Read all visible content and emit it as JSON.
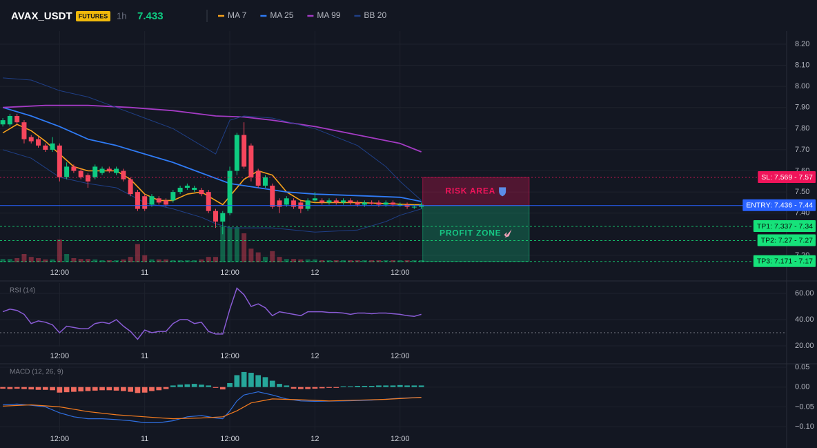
{
  "header": {
    "symbol": "AVAX_USDT",
    "badge": "FUTURES",
    "interval": "1h",
    "price": 7.433
  },
  "chart_data": [
    {
      "type": "candlestick",
      "x": [
        0,
        1,
        2,
        3,
        4,
        5,
        6,
        7,
        8,
        9,
        10,
        11,
        12,
        13,
        14,
        15,
        16,
        17,
        18,
        19,
        20,
        21,
        22,
        23,
        24,
        25,
        26,
        27,
        28,
        29,
        30,
        31,
        32,
        33,
        34,
        35,
        36,
        37,
        38,
        39,
        40,
        41,
        42,
        43,
        44,
        45,
        46,
        47,
        48,
        49,
        50,
        51,
        52,
        53,
        54,
        55,
        56,
        57,
        58,
        59
      ],
      "open": [
        7.82,
        7.82,
        7.86,
        7.83,
        7.76,
        7.75,
        7.72,
        7.7,
        7.72,
        7.57,
        7.62,
        7.6,
        7.58,
        7.57,
        7.59,
        7.61,
        7.59,
        7.6,
        7.56,
        7.5,
        7.48,
        7.44,
        7.47,
        7.46,
        7.46,
        7.5,
        7.52,
        7.51,
        7.51,
        7.5,
        7.41,
        7.36,
        7.4,
        7.6,
        7.77,
        7.72,
        7.6,
        7.53,
        7.53,
        7.46,
        7.44,
        7.46,
        7.45,
        7.42,
        7.46,
        7.46,
        7.45,
        7.46,
        7.45,
        7.46,
        7.45,
        7.44,
        7.45,
        7.45,
        7.44,
        7.45,
        7.44,
        7.44,
        7.43,
        7.43
      ],
      "high": [
        7.85,
        7.87,
        7.87,
        7.84,
        7.77,
        7.76,
        7.73,
        7.76,
        7.73,
        7.64,
        7.63,
        7.61,
        7.59,
        7.63,
        7.62,
        7.62,
        7.62,
        7.61,
        7.57,
        7.51,
        7.49,
        7.49,
        7.48,
        7.47,
        7.51,
        7.53,
        7.54,
        7.53,
        7.52,
        7.51,
        7.42,
        7.41,
        7.62,
        7.78,
        7.83,
        7.73,
        7.61,
        7.58,
        7.54,
        7.47,
        7.48,
        7.47,
        7.46,
        7.47,
        7.5,
        7.47,
        7.47,
        7.47,
        7.47,
        7.47,
        7.46,
        7.46,
        7.46,
        7.46,
        7.46,
        7.46,
        7.45,
        7.45,
        7.44,
        7.45
      ],
      "low": [
        7.81,
        7.81,
        7.82,
        7.73,
        7.73,
        7.71,
        7.69,
        7.69,
        7.55,
        7.56,
        7.59,
        7.56,
        7.52,
        7.56,
        7.58,
        7.59,
        7.58,
        7.55,
        7.48,
        7.41,
        7.41,
        7.43,
        7.44,
        7.43,
        7.45,
        7.49,
        7.51,
        7.5,
        7.48,
        7.4,
        7.33,
        7.3,
        7.39,
        7.58,
        7.61,
        7.55,
        7.52,
        7.52,
        7.42,
        7.4,
        7.43,
        7.42,
        7.4,
        7.41,
        7.45,
        7.44,
        7.44,
        7.44,
        7.44,
        7.44,
        7.43,
        7.43,
        7.44,
        7.43,
        7.43,
        7.43,
        7.43,
        7.42,
        7.42,
        7.42
      ],
      "close": [
        7.84,
        7.86,
        7.83,
        7.75,
        7.74,
        7.72,
        7.7,
        7.73,
        7.57,
        7.62,
        7.6,
        7.57,
        7.55,
        7.62,
        7.61,
        7.6,
        7.61,
        7.56,
        7.49,
        7.42,
        7.42,
        7.48,
        7.45,
        7.44,
        7.5,
        7.52,
        7.53,
        7.52,
        7.49,
        7.41,
        7.36,
        7.4,
        7.6,
        7.77,
        7.62,
        7.57,
        7.53,
        7.57,
        7.43,
        7.43,
        7.47,
        7.43,
        7.42,
        7.46,
        7.47,
        7.45,
        7.46,
        7.45,
        7.46,
        7.45,
        7.44,
        7.45,
        7.445,
        7.44,
        7.45,
        7.44,
        7.44,
        7.43,
        7.43,
        7.44
      ],
      "volumes": [
        8,
        8,
        10,
        20,
        13,
        10,
        7,
        7,
        55,
        20,
        10,
        8,
        8,
        7,
        5,
        5,
        5,
        7,
        13,
        44,
        17,
        7,
        7,
        7,
        5,
        5,
        5,
        5,
        7,
        13,
        13,
        85,
        85,
        85,
        70,
        33,
        24,
        13,
        27,
        13,
        8,
        8,
        7,
        7,
        7,
        5,
        5,
        5,
        5,
        5,
        5,
        5,
        5,
        5,
        5,
        5,
        5,
        5,
        5,
        5
      ],
      "volume_ylim": [
        0,
        100
      ],
      "up_color": "#0ecb81",
      "down_color": "#f6465d",
      "series": [
        {
          "name": "MA 7",
          "color": "#f7a21b",
          "x": [
            0,
            2,
            4,
            6,
            8,
            10,
            12,
            14,
            16,
            18,
            20,
            22,
            24,
            26,
            28,
            30,
            31,
            32,
            34,
            36,
            38,
            40,
            42,
            44,
            46,
            50,
            54,
            58,
            59
          ],
          "values": [
            7.78,
            7.82,
            7.79,
            7.74,
            7.68,
            7.62,
            7.6,
            7.6,
            7.6,
            7.56,
            7.49,
            7.46,
            7.46,
            7.49,
            7.5,
            7.46,
            7.44,
            7.48,
            7.56,
            7.6,
            7.58,
            7.5,
            7.46,
            7.45,
            7.45,
            7.45,
            7.445,
            7.44,
            7.44
          ]
        },
        {
          "name": "MA 25",
          "color": "#2f7bf5",
          "x": [
            0,
            4,
            8,
            12,
            16,
            20,
            24,
            28,
            32,
            36,
            40,
            44,
            48,
            52,
            56,
            59
          ],
          "values": [
            7.9,
            7.86,
            7.81,
            7.75,
            7.72,
            7.68,
            7.64,
            7.59,
            7.54,
            7.52,
            7.5,
            7.49,
            7.485,
            7.48,
            7.475,
            7.455
          ]
        },
        {
          "name": "MA 99",
          "color": "#a43bc4",
          "x": [
            0,
            6,
            12,
            18,
            24,
            30,
            34,
            38,
            44,
            50,
            56,
            59
          ],
          "values": [
            7.9,
            7.91,
            7.91,
            7.9,
            7.885,
            7.86,
            7.855,
            7.84,
            7.81,
            7.77,
            7.73,
            7.69
          ]
        },
        {
          "name": "BB 20",
          "color": "#1f3f86",
          "x": [
            0,
            4,
            8,
            12,
            16,
            20,
            24,
            28,
            30,
            32,
            34,
            38,
            44,
            50,
            54,
            56,
            59
          ],
          "upper": [
            8.04,
            8.03,
            7.98,
            7.95,
            7.9,
            7.85,
            7.8,
            7.72,
            7.68,
            7.84,
            7.86,
            7.85,
            7.8,
            7.72,
            7.62,
            7.55,
            7.46
          ],
          "lower": [
            7.7,
            7.66,
            7.57,
            7.54,
            7.52,
            7.45,
            7.42,
            7.38,
            7.35,
            7.33,
            7.33,
            7.33,
            7.31,
            7.32,
            7.36,
            7.39,
            7.42
          ]
        }
      ],
      "levels": [
        {
          "label": "SL: 7.569 - 7.57",
          "value": 7.569,
          "color": "#f0145a",
          "text_color": "#ffffff",
          "style": "dotted"
        },
        {
          "label": "ENTRY: 7.436 - 7.44",
          "value": 7.436,
          "color": "#2962ff",
          "text_color": "#ffffff",
          "style": "solid"
        },
        {
          "label": "TP1: 7.337 - 7.34",
          "value": 7.337,
          "color": "#16e27a",
          "text_color": "#08130d",
          "style": "dashed"
        },
        {
          "label": "TP2: 7.27 - 7.27",
          "value": 7.27,
          "color": "#16e27a",
          "text_color": "#08130d",
          "style": "dashed"
        },
        {
          "label": "TP3: 7.171 - 7.17",
          "value": 7.171,
          "color": "#16e27a",
          "text_color": "#08130d",
          "style": "dashed"
        }
      ],
      "zones": [
        {
          "label": "RISK AREA",
          "from": 7.569,
          "to": 7.436,
          "x": [
            59.2,
            74.2
          ],
          "color": "#f0145a"
        },
        {
          "label": "PROFIT ZONE",
          "from": 7.436,
          "to": 7.171,
          "x": [
            59.2,
            74.2
          ],
          "color": "#16c784"
        }
      ],
      "xlim": [
        -0.4,
        110.5
      ],
      "xticks": [
        {
          "value": 8,
          "label": "12:00"
        },
        {
          "value": 20,
          "label": "11"
        },
        {
          "value": 32,
          "label": "12:00"
        },
        {
          "value": 44,
          "label": "12"
        },
        {
          "value": 56,
          "label": "12:00"
        }
      ],
      "ylim": [
        7.167,
        8.262
      ],
      "yticks": [
        {
          "value": 7.2,
          "label": "7.20"
        },
        {
          "value": 7.4,
          "label": "7.40"
        },
        {
          "value": 7.5,
          "label": "7.50"
        },
        {
          "value": 7.6,
          "label": "7.60"
        },
        {
          "value": 7.7,
          "label": "7.70"
        },
        {
          "value": 7.8,
          "label": "7.80"
        },
        {
          "value": 7.9,
          "label": "7.90"
        },
        {
          "value": 8.0,
          "label": "8.00"
        },
        {
          "value": 8.1,
          "label": "8.10"
        },
        {
          "value": 8.2,
          "label": "8.20"
        }
      ],
      "grid": true
    },
    {
      "type": "line",
      "title": "RSI (14)",
      "x": [
        0,
        1,
        2,
        3,
        4,
        5,
        6,
        7,
        8,
        9,
        10,
        11,
        12,
        13,
        14,
        15,
        16,
        17,
        18,
        19,
        20,
        21,
        22,
        23,
        24,
        25,
        26,
        27,
        28,
        29,
        30,
        31,
        32,
        33,
        34,
        35,
        36,
        37,
        38,
        39,
        40,
        41,
        42,
        43,
        44,
        45,
        46,
        47,
        48,
        49,
        50,
        51,
        52,
        53,
        54,
        55,
        56,
        57,
        58,
        59
      ],
      "series": [
        {
          "color": "#8a5cd6",
          "values": [
            46,
            48,
            47,
            44,
            37,
            39,
            38,
            36,
            30,
            35,
            34,
            33,
            33,
            37,
            38,
            37,
            40,
            35,
            31,
            25,
            32,
            30,
            31,
            31,
            37,
            40,
            40,
            37,
            38,
            31,
            29,
            29,
            48,
            64,
            59,
            50,
            52,
            49,
            43,
            46,
            45,
            44,
            43,
            46,
            46,
            46,
            45.5,
            45.5,
            45,
            44,
            45,
            45,
            44.5,
            45,
            45,
            44.5,
            44,
            43,
            42.5,
            44
          ]
        }
      ],
      "reference_line": 30,
      "xlim": [
        -0.4,
        110.5
      ],
      "xticks": [
        {
          "value": 8,
          "label": "12:00"
        },
        {
          "value": 20,
          "label": "11"
        },
        {
          "value": 32,
          "label": "12:00"
        },
        {
          "value": 44,
          "label": "12"
        },
        {
          "value": 56,
          "label": "12:00"
        }
      ],
      "ylim": [
        19.5,
        67.9
      ],
      "yticks": [
        {
          "value": 20,
          "label": "20.00"
        },
        {
          "value": 40,
          "label": "40.00"
        },
        {
          "value": 60,
          "label": "60.00"
        }
      ],
      "grid": true
    },
    {
      "type": "macd",
      "title": "MACD (12, 26, 9)",
      "x": [
        0,
        1,
        2,
        3,
        4,
        5,
        6,
        7,
        8,
        9,
        10,
        11,
        12,
        13,
        14,
        15,
        16,
        17,
        18,
        19,
        20,
        21,
        22,
        23,
        24,
        25,
        26,
        27,
        28,
        29,
        30,
        31,
        32,
        33,
        34,
        35,
        36,
        37,
        38,
        39,
        40,
        41,
        42,
        43,
        44,
        45,
        46,
        47,
        48,
        49,
        50,
        51,
        52,
        53,
        54,
        55,
        56,
        57,
        58,
        59
      ],
      "histogram": [
        -0.004,
        -0.005,
        -0.004,
        -0.005,
        -0.006,
        -0.007,
        -0.007,
        -0.008,
        -0.014,
        -0.013,
        -0.012,
        -0.011,
        -0.01,
        -0.009,
        -0.008,
        -0.008,
        -0.009,
        -0.01,
        -0.012,
        -0.015,
        -0.014,
        -0.01,
        -0.008,
        -0.005,
        0.004,
        0.006,
        0.007,
        0.008,
        0.006,
        0.004,
        -0.002,
        -0.006,
        0.01,
        0.03,
        0.038,
        0.036,
        0.03,
        0.025,
        0.016,
        0.008,
        0.004,
        -0.004,
        -0.005,
        -0.005,
        -0.004,
        -0.003,
        -0.002,
        -0.002,
        0.002,
        0.002,
        0.003,
        0.003,
        0.003,
        0.004,
        0.004,
        0.004,
        0.005,
        0.004,
        0.004,
        0.004
      ],
      "up_color": "#26a69a",
      "down_color": "#ef6a5e",
      "series": [
        {
          "color": "#2f6fe0",
          "x": [
            0,
            2,
            4,
            6,
            8,
            10,
            12,
            14,
            16,
            18,
            20,
            22,
            24,
            26,
            28,
            30,
            31,
            32,
            33,
            34,
            36,
            38,
            40,
            42,
            44,
            48,
            52,
            56,
            59
          ],
          "values": [
            -0.045,
            -0.043,
            -0.046,
            -0.05,
            -0.065,
            -0.075,
            -0.08,
            -0.08,
            -0.082,
            -0.085,
            -0.09,
            -0.09,
            -0.085,
            -0.075,
            -0.072,
            -0.078,
            -0.08,
            -0.06,
            -0.035,
            -0.02,
            -0.012,
            -0.02,
            -0.03,
            -0.035,
            -0.036,
            -0.035,
            -0.033,
            -0.028,
            -0.026
          ]
        },
        {
          "color": "#f57c1f",
          "x": [
            0,
            4,
            8,
            12,
            16,
            20,
            24,
            28,
            31,
            33,
            35,
            38,
            42,
            46,
            50,
            54,
            59
          ],
          "values": [
            -0.048,
            -0.045,
            -0.05,
            -0.062,
            -0.07,
            -0.075,
            -0.08,
            -0.078,
            -0.075,
            -0.06,
            -0.04,
            -0.03,
            -0.032,
            -0.035,
            -0.033,
            -0.031,
            -0.026
          ]
        }
      ],
      "xlim": [
        -0.4,
        110.5
      ],
      "xticks": [
        {
          "value": 8,
          "label": "12:00"
        },
        {
          "value": 20,
          "label": "11"
        },
        {
          "value": 32,
          "label": "12:00"
        },
        {
          "value": 44,
          "label": "12"
        },
        {
          "value": 56,
          "label": "12:00"
        }
      ],
      "ylim": [
        -0.112,
        0.057
      ],
      "yticks": [
        {
          "value": -0.1,
          "label": "−0.10"
        },
        {
          "value": -0.05,
          "label": "−0.05"
        },
        {
          "value": 0,
          "label": "0.00"
        },
        0.05
      ],
      "grid": true
    }
  ]
}
